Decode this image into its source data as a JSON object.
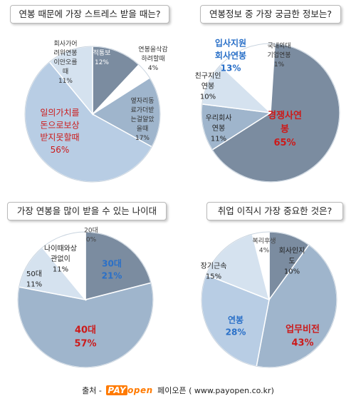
{
  "chart_data": [
    {
      "type": "pie",
      "title": "연봉 때문에 가장 스트레스 받을 때는?",
      "slices": [
        {
          "label": "회사의 일방적 통보",
          "value": 12,
          "color": "#7b8ca0",
          "text_color": "#ffffff",
          "size": 9
        },
        {
          "label": "연봉을 삭감하려할 때",
          "value": 4,
          "color": "#ffffff",
          "text_color": "#333333",
          "size": 9
        },
        {
          "label": "옆자리 동료가 더받는걸 알았을때",
          "value": 17,
          "color": "#9fb5cc",
          "text_color": "#333333",
          "size": 9
        },
        {
          "label": "일의 가치를 돈으로 보상받지 못할때",
          "value": 56,
          "color": "#b8cde4",
          "text_color": "#cc1a1a",
          "size": 12,
          "bold": false
        },
        {
          "label": "회사가 어려워 연봉이 안오를때",
          "value": 11,
          "color": "#d5e2ef",
          "text_color": "#333333",
          "size": 9
        }
      ]
    },
    {
      "type": "pie",
      "title": "연봉정보 중 가장 궁금한 정보는?",
      "slices": [
        {
          "label": "국내외 대기업 연봉",
          "value": 1,
          "color": "#ffffff",
          "text_color": "#333333",
          "size": 9
        },
        {
          "label": "경쟁사 연봉",
          "value": 65,
          "color": "#7b8ca0",
          "text_color": "#cc1a1a",
          "size": 13,
          "bold": true
        },
        {
          "label": "우리회사 연봉",
          "value": 11,
          "color": "#9fb5cc",
          "text_color": "#222222",
          "size": 10
        },
        {
          "label": "친구지인 연봉",
          "value": 10,
          "color": "#d5e2ef",
          "text_color": "#222222",
          "size": 10
        },
        {
          "label": "입사지원 회사연봉",
          "value": 13,
          "color": "#ffffff",
          "text_color": "#2a70c8",
          "size": 12,
          "bold": true
        }
      ]
    },
    {
      "type": "pie",
      "title": "가장 연봉을 많이 받을 수 있는 나이대",
      "slices": [
        {
          "label": "20대",
          "value": 0,
          "color": "#ffffff",
          "text_color": "#444444",
          "size": 9
        },
        {
          "label": "30대",
          "value": 21,
          "color": "#7b8ca0",
          "text_color": "#2a70c8",
          "size": 12,
          "bold": true
        },
        {
          "label": "40대",
          "value": 57,
          "color": "#9fb5cc",
          "text_color": "#cc1a1a",
          "size": 13,
          "bold": true
        },
        {
          "label": "50대",
          "value": 11,
          "color": "#d5e2ef",
          "text_color": "#222222",
          "size": 10
        },
        {
          "label": "나이때와 상관없이",
          "value": 11,
          "color": "#ffffff",
          "text_color": "#222222",
          "size": 10
        }
      ]
    },
    {
      "type": "pie",
      "title": "취업 이직시 가장 중요한 것은?",
      "slices": [
        {
          "label": "회사인지 도",
          "value": 10,
          "color": "#7b8ca0",
          "text_color": "#222222",
          "size": 10
        },
        {
          "label": "업무비전",
          "value": 43,
          "color": "#9fb5cc",
          "text_color": "#cc1a1a",
          "size": 13,
          "bold": true
        },
        {
          "label": "연봉",
          "value": 28,
          "color": "#b8cde4",
          "text_color": "#2a70c8",
          "size": 12,
          "bold": true
        },
        {
          "label": "장기근속",
          "value": 15,
          "color": "#d5e2ef",
          "text_color": "#222222",
          "size": 10
        },
        {
          "label": "복리후생",
          "value": 4,
          "color": "#ffffff",
          "text_color": "#444444",
          "size": 9
        }
      ]
    }
  ],
  "footer": {
    "source_prefix": "출처 -",
    "logo_left": "PAY",
    "logo_right": "open",
    "source_suffix": "페이오픈 ( www.payopen.co.kr)"
  }
}
